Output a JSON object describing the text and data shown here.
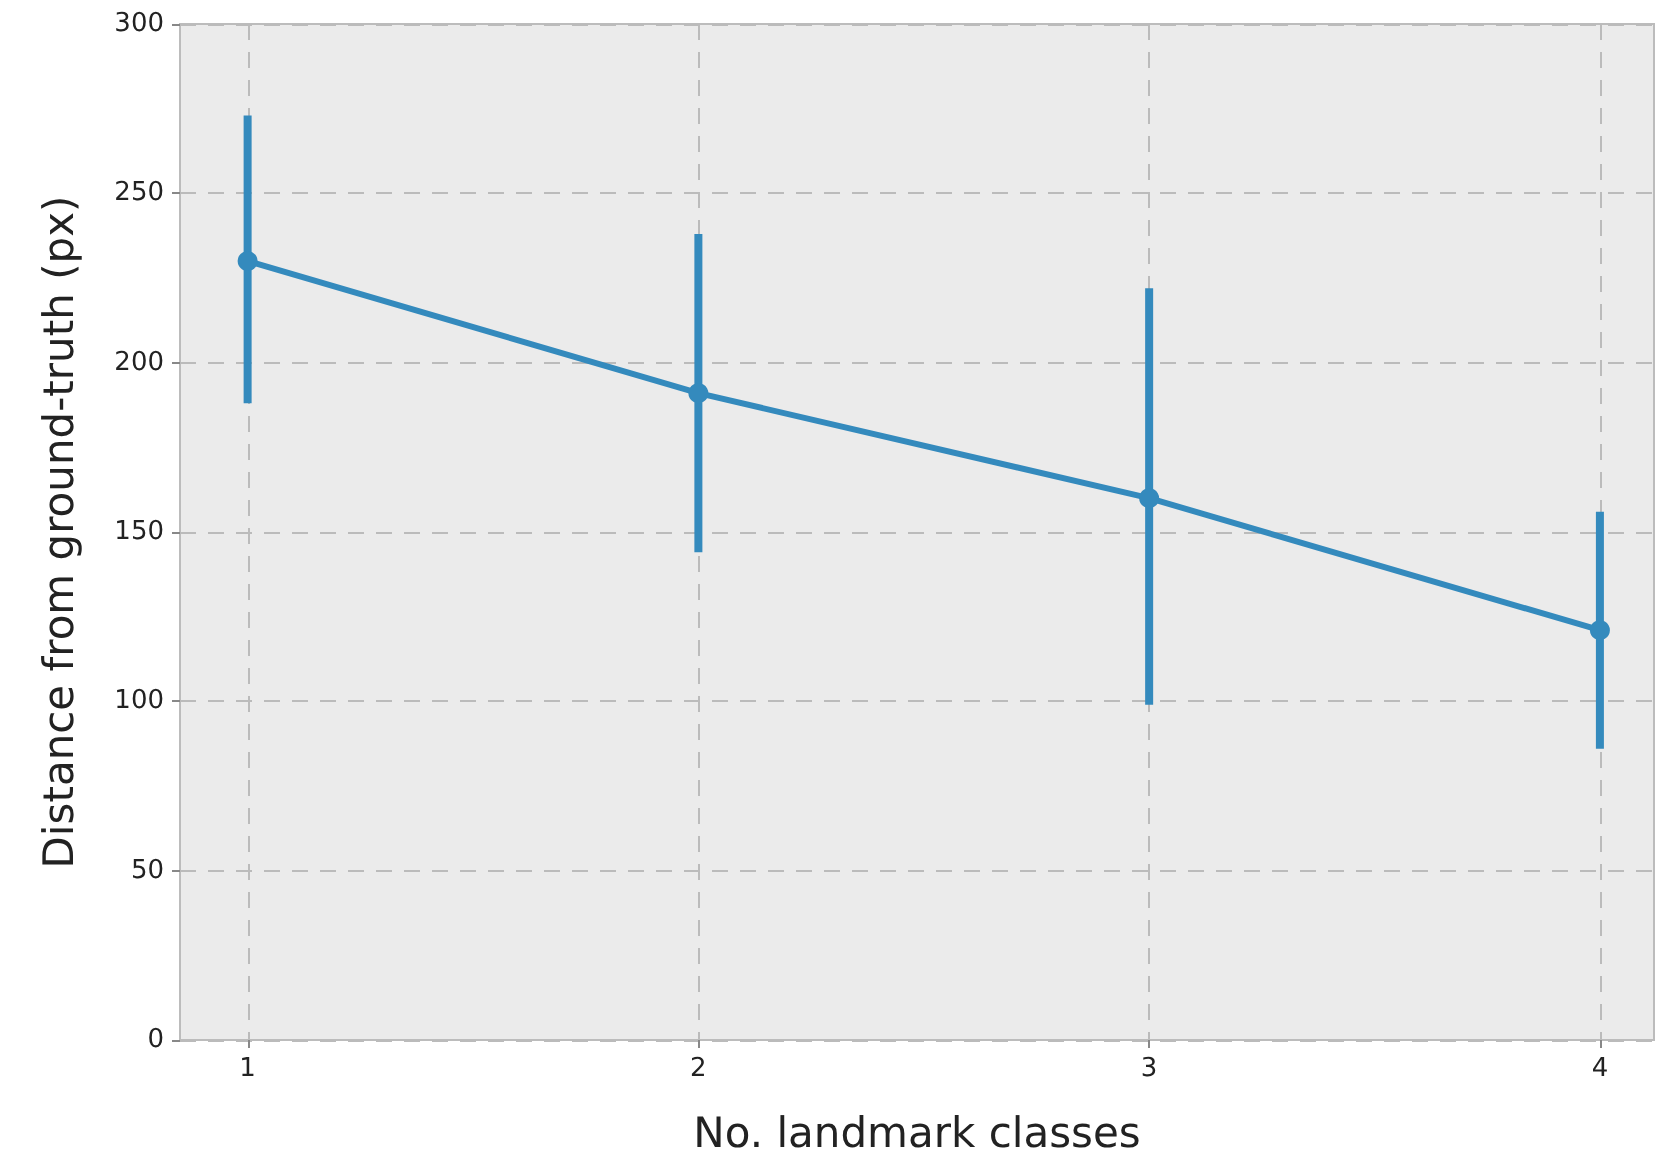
{
  "chart_data": {
    "type": "line",
    "xlabel": "No. landmark classes",
    "ylabel": "Distance from ground-truth (px)",
    "x": [
      1,
      2,
      3,
      4
    ],
    "series": [
      {
        "color": "#348abd",
        "values": [
          230,
          191,
          160,
          121
        ],
        "errors": [
          [
            188,
            273
          ],
          [
            144,
            238
          ],
          [
            99,
            222
          ],
          [
            86,
            156
          ]
        ]
      }
    ],
    "xlim": [
      0.85,
      4.12
    ],
    "xticks": [
      1,
      2,
      3,
      4
    ],
    "ylim": [
      0,
      300
    ],
    "yticks": [
      0,
      50,
      100,
      150,
      200,
      250,
      300
    ],
    "grid": true,
    "marker": "circle",
    "line_style": "solid"
  }
}
